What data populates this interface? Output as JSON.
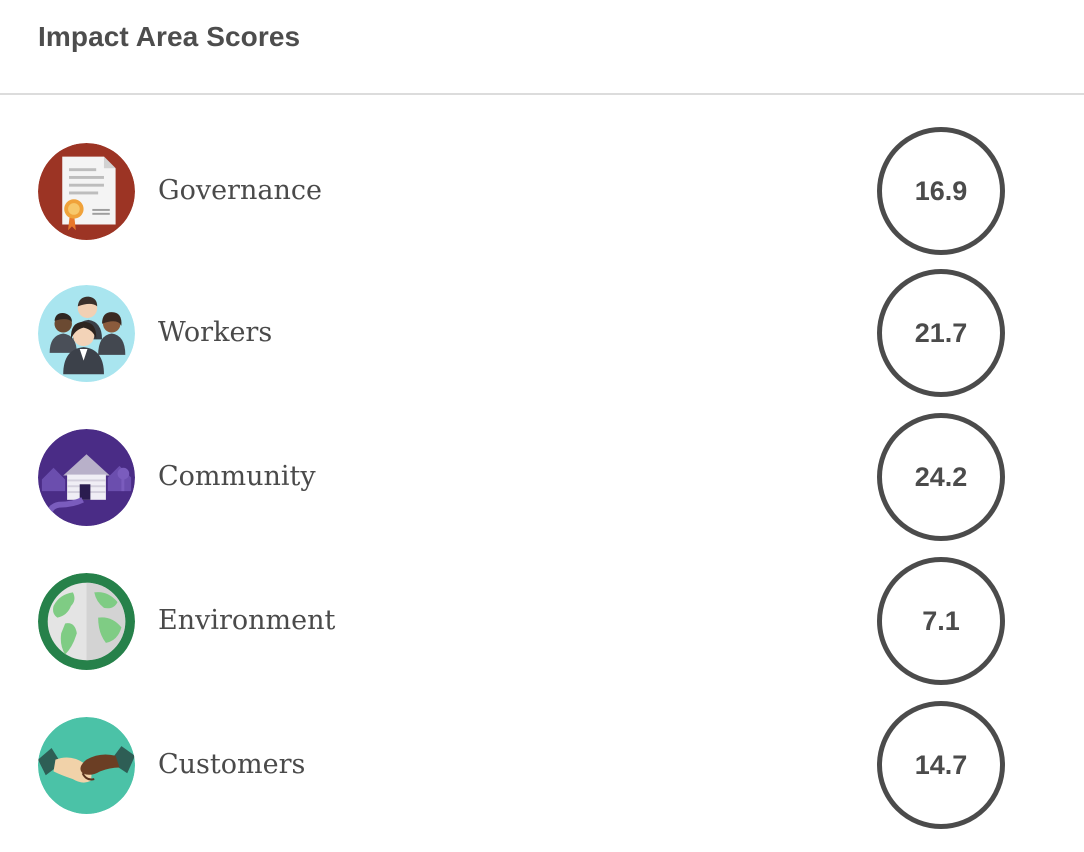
{
  "header": {
    "title": "Impact Area Scores"
  },
  "impact_areas": [
    {
      "label": "Governance",
      "score": "16.9",
      "icon": "governance-certificate-icon",
      "color": "#9c3424"
    },
    {
      "label": "Workers",
      "score": "21.7",
      "icon": "workers-people-icon",
      "color": "#a9e5ef"
    },
    {
      "label": "Community",
      "score": "24.2",
      "icon": "community-house-icon",
      "color": "#4a2c86"
    },
    {
      "label": "Environment",
      "score": "7.1",
      "icon": "environment-globe-icon",
      "color": "#26814a"
    },
    {
      "label": "Customers",
      "score": "14.7",
      "icon": "customers-handshake-icon",
      "color": "#4bc2a7"
    }
  ],
  "colors": {
    "score_ring": "#4b4b4b",
    "divider": "#dcdcdc"
  }
}
